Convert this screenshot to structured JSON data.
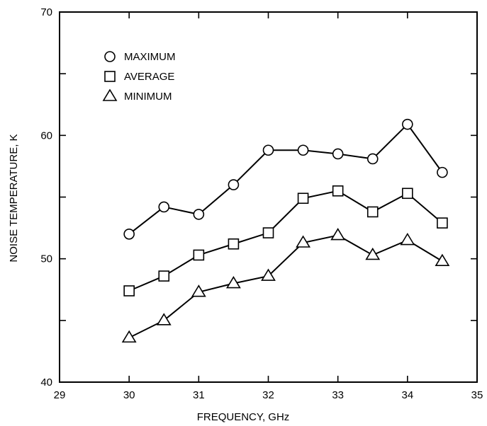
{
  "chart_data": {
    "type": "line",
    "title": "",
    "xlabel": "FREQUENCY, GHz",
    "ylabel": "NOISE TEMPERATURE, K",
    "xlim": [
      29,
      35
    ],
    "ylim": [
      40,
      70
    ],
    "x_ticks": [
      29,
      30,
      31,
      32,
      33,
      34,
      35
    ],
    "y_ticks": [
      40,
      50,
      60,
      70
    ],
    "x_tick_labels": [
      "29",
      "30",
      "31",
      "32",
      "33",
      "34",
      "35"
    ],
    "y_tick_labels": [
      "40",
      "50",
      "60",
      "70"
    ],
    "grid": false,
    "legend_position": "top-left",
    "x": [
      30,
      30.5,
      31,
      31.5,
      32,
      32.5,
      33,
      33.5,
      34,
      34.5
    ],
    "series": [
      {
        "name": "MAXIMUM",
        "marker": "circle",
        "values": [
          52.0,
          54.2,
          53.6,
          56.0,
          58.8,
          58.8,
          58.5,
          58.1,
          60.9,
          57.0
        ]
      },
      {
        "name": "AVERAGE",
        "marker": "square",
        "values": [
          47.4,
          48.6,
          50.3,
          51.2,
          52.1,
          54.9,
          55.5,
          53.8,
          55.3,
          52.9
        ]
      },
      {
        "name": "MINIMUM",
        "marker": "triangle",
        "values": [
          43.6,
          45.0,
          47.3,
          48.0,
          48.6,
          51.3,
          51.9,
          50.3,
          51.5,
          49.8
        ]
      }
    ],
    "colors": {
      "line": "#000000",
      "marker_fill": "#ffffff",
      "background": "#ffffff"
    }
  }
}
